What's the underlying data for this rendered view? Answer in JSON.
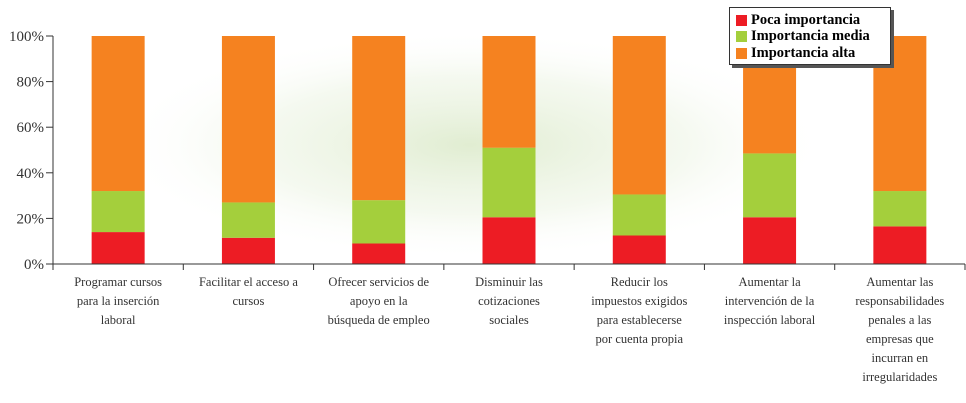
{
  "chart_data": {
    "type": "bar",
    "stacked": true,
    "percent": true,
    "categories": [
      "Programar cursos para la inserción laboral",
      "Facilitar el acceso a cursos",
      "Ofrecer servicios de apoyo en la búsqueda de empleo",
      "Disminuir las cotizaciones sociales",
      "Reducir los impuestos exigidos para establecerse por cuenta propia",
      "Aumentar la intervención de la inspección laboral",
      "Aumentar las responsabilidades penales a las empresas que incurran en irregularidades"
    ],
    "category_lines": [
      [
        "Programar cursos",
        "para la inserción",
        "laboral"
      ],
      [
        "Facilitar el acceso a",
        "cursos"
      ],
      [
        "Ofrecer servicios de",
        "apoyo en la",
        "búsqueda de empleo"
      ],
      [
        "Disminuir las",
        "cotizaciones",
        "sociales"
      ],
      [
        "Reducir los",
        "impuestos exigidos",
        "para establecerse",
        "por cuenta propia"
      ],
      [
        "Aumentar la",
        "intervención de la",
        "inspección laboral"
      ],
      [
        "Aumentar las",
        "responsabilidades",
        "penales a las",
        "empresas que",
        "incurran en",
        "irregularidades"
      ]
    ],
    "series": [
      {
        "name": "Poca importancia",
        "color": "#ed1c24",
        "values": [
          14,
          11.5,
          9,
          20.5,
          12.5,
          20.5,
          16.5
        ]
      },
      {
        "name": "Importancia media",
        "color": "#a4cf3c",
        "values": [
          18,
          15.5,
          19,
          30.5,
          18,
          28,
          15.5
        ]
      },
      {
        "name": "Importancia alta",
        "color": "#f58220",
        "values": [
          68,
          73,
          72,
          49,
          69.5,
          51.5,
          68
        ]
      }
    ],
    "yticks": [
      "0%",
      "20%",
      "40%",
      "60%",
      "80%",
      "100%"
    ],
    "ylim": [
      0,
      100
    ],
    "legend_position": "top-right",
    "grid": false
  }
}
